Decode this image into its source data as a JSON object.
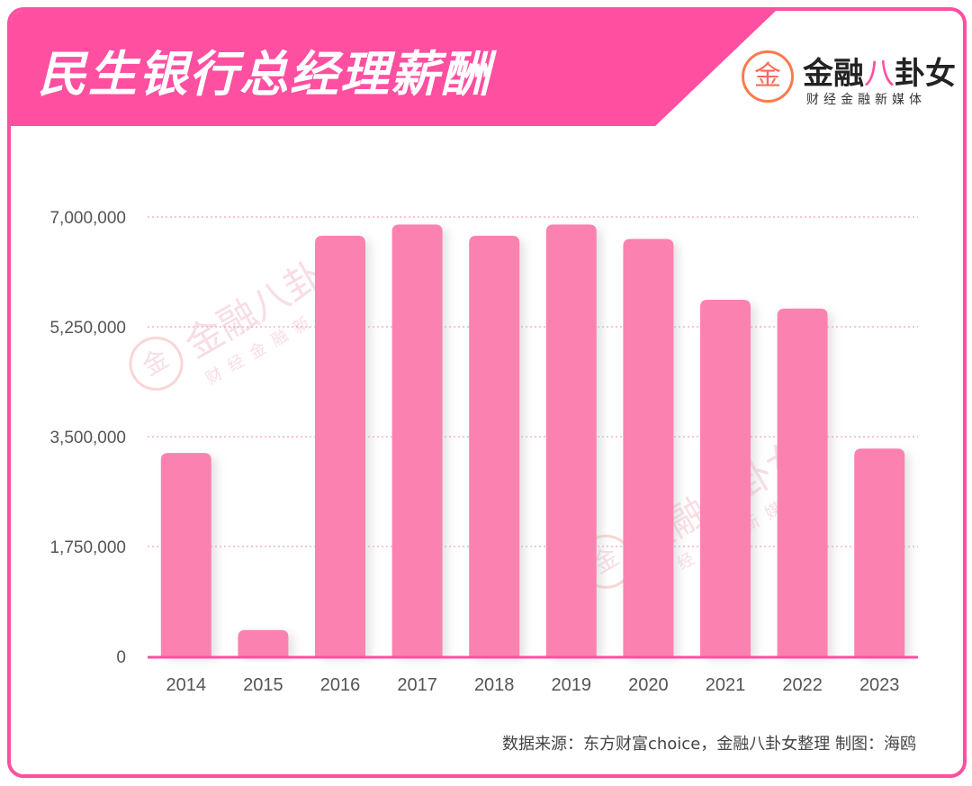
{
  "header": {
    "title": "民生银行总经理薪酬"
  },
  "logo": {
    "circle_char": "金",
    "main_prefix": "金融",
    "main_accent": "八",
    "main_suffix": "卦女",
    "subtitle": "财经金融新媒体"
  },
  "watermark": {
    "circle_char": "金",
    "main": "金融八卦女",
    "sub": "财经金融新媒体"
  },
  "source": "数据来源：东方财富choice，金融八卦女整理    制图：海鸥",
  "colors": {
    "accent": "#ff4fa0",
    "bar": "#fb82b0",
    "grid": "#f28ab3"
  },
  "chart_data": {
    "type": "bar",
    "categories": [
      "2014",
      "2015",
      "2016",
      "2017",
      "2018",
      "2019",
      "2020",
      "2021",
      "2022",
      "2023"
    ],
    "values": [
      3240000,
      420000,
      6700000,
      6880000,
      6700000,
      6880000,
      6650000,
      5680000,
      5540000,
      3310000
    ],
    "title": "民生银行总经理薪酬",
    "xlabel": "",
    "ylabel": "",
    "ylim": [
      0,
      7000000
    ],
    "yticks": [
      0,
      1750000,
      3500000,
      5250000,
      7000000
    ],
    "ytick_labels": [
      "0",
      "1,750,000",
      "3,500,000",
      "5,250,000",
      "7,000,000"
    ],
    "grid": true,
    "legend": "none"
  }
}
